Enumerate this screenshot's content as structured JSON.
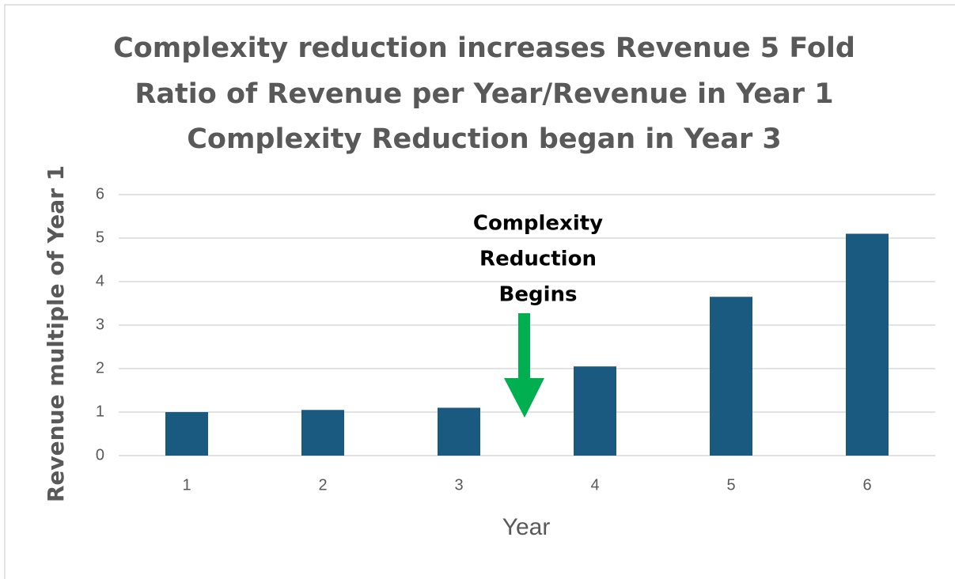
{
  "chart_data": {
    "type": "bar",
    "title_lines": [
      "Complexity reduction increases Revenue 5 Fold",
      "Ratio of Revenue per Year/Revenue in Year 1",
      "Complexity Reduction began in Year 3"
    ],
    "x_label": "Year",
    "y_label": "Revenue multiple of  Year 1",
    "annotation_lines": [
      "Complexity",
      "Reduction",
      "Begins"
    ],
    "categories": [
      "1",
      "2",
      "3",
      "4",
      "5",
      "6"
    ],
    "values": [
      1,
      1.05,
      1.1,
      2.05,
      3.65,
      5.1
    ],
    "color": "#1a5a80",
    "ylim": [
      0,
      6
    ],
    "yticks": [
      0,
      1,
      2,
      3,
      4,
      5,
      6
    ],
    "grid": true
  }
}
